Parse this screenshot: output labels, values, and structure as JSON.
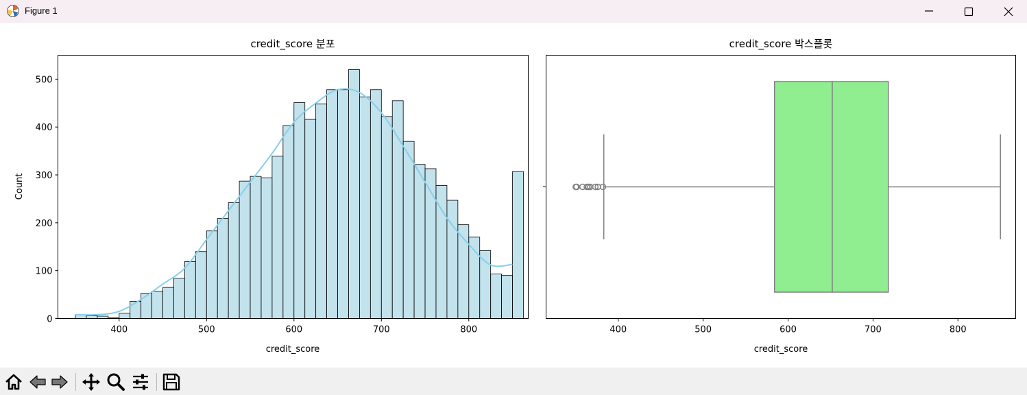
{
  "window": {
    "title": "Figure 1"
  },
  "toolbar": {
    "icons": [
      "home-icon",
      "back-icon",
      "forward-icon",
      "pan-icon",
      "zoom-icon",
      "configure-subplots-icon",
      "save-icon"
    ]
  },
  "colors": {
    "hist_fill": "#add8e6",
    "kde_line": "#87ceeb",
    "box_fill": "#90ee90",
    "box_line": "#808080"
  },
  "chart_data": [
    {
      "type": "bar",
      "subtype": "histogram",
      "title": "credit_score 분포",
      "xlabel": "credit_score",
      "ylabel": "Count",
      "xlim": [
        330,
        868
      ],
      "ylim": [
        0,
        550
      ],
      "xticks": [
        400,
        500,
        600,
        700,
        800
      ],
      "yticks": [
        0,
        100,
        200,
        300,
        400,
        500
      ],
      "bin_start": 350,
      "bin_width": 12.5,
      "values": [
        8,
        6,
        5,
        2,
        11,
        36,
        53,
        57,
        65,
        84,
        119,
        140,
        183,
        209,
        242,
        287,
        297,
        294,
        339,
        403,
        451,
        416,
        448,
        478,
        478,
        520,
        463,
        478,
        422,
        455,
        370,
        322,
        313,
        278,
        247,
        196,
        170,
        142,
        93,
        90,
        307
      ],
      "kde": {
        "x": [
          350,
          375,
          400,
          425,
          450,
          475,
          500,
          525,
          550,
          575,
          600,
          625,
          650,
          675,
          700,
          725,
          750,
          775,
          800,
          825,
          850
        ],
        "y": [
          8,
          8,
          15,
          40,
          72,
          105,
          165,
          225,
          285,
          345,
          410,
          450,
          478,
          472,
          430,
          360,
          285,
          210,
          155,
          112,
          113
        ]
      }
    },
    {
      "type": "box",
      "title": "credit_score 박스플롯",
      "xlabel": "credit_score",
      "xlim": [
        315,
        868
      ],
      "xticks": [
        400,
        500,
        600,
        700,
        800
      ],
      "whisker_low": 383,
      "q1": 584,
      "median": 652,
      "q3": 718,
      "whisker_high": 850,
      "outliers": [
        350,
        351,
        358,
        363,
        365,
        367,
        373,
        376,
        382
      ]
    }
  ]
}
